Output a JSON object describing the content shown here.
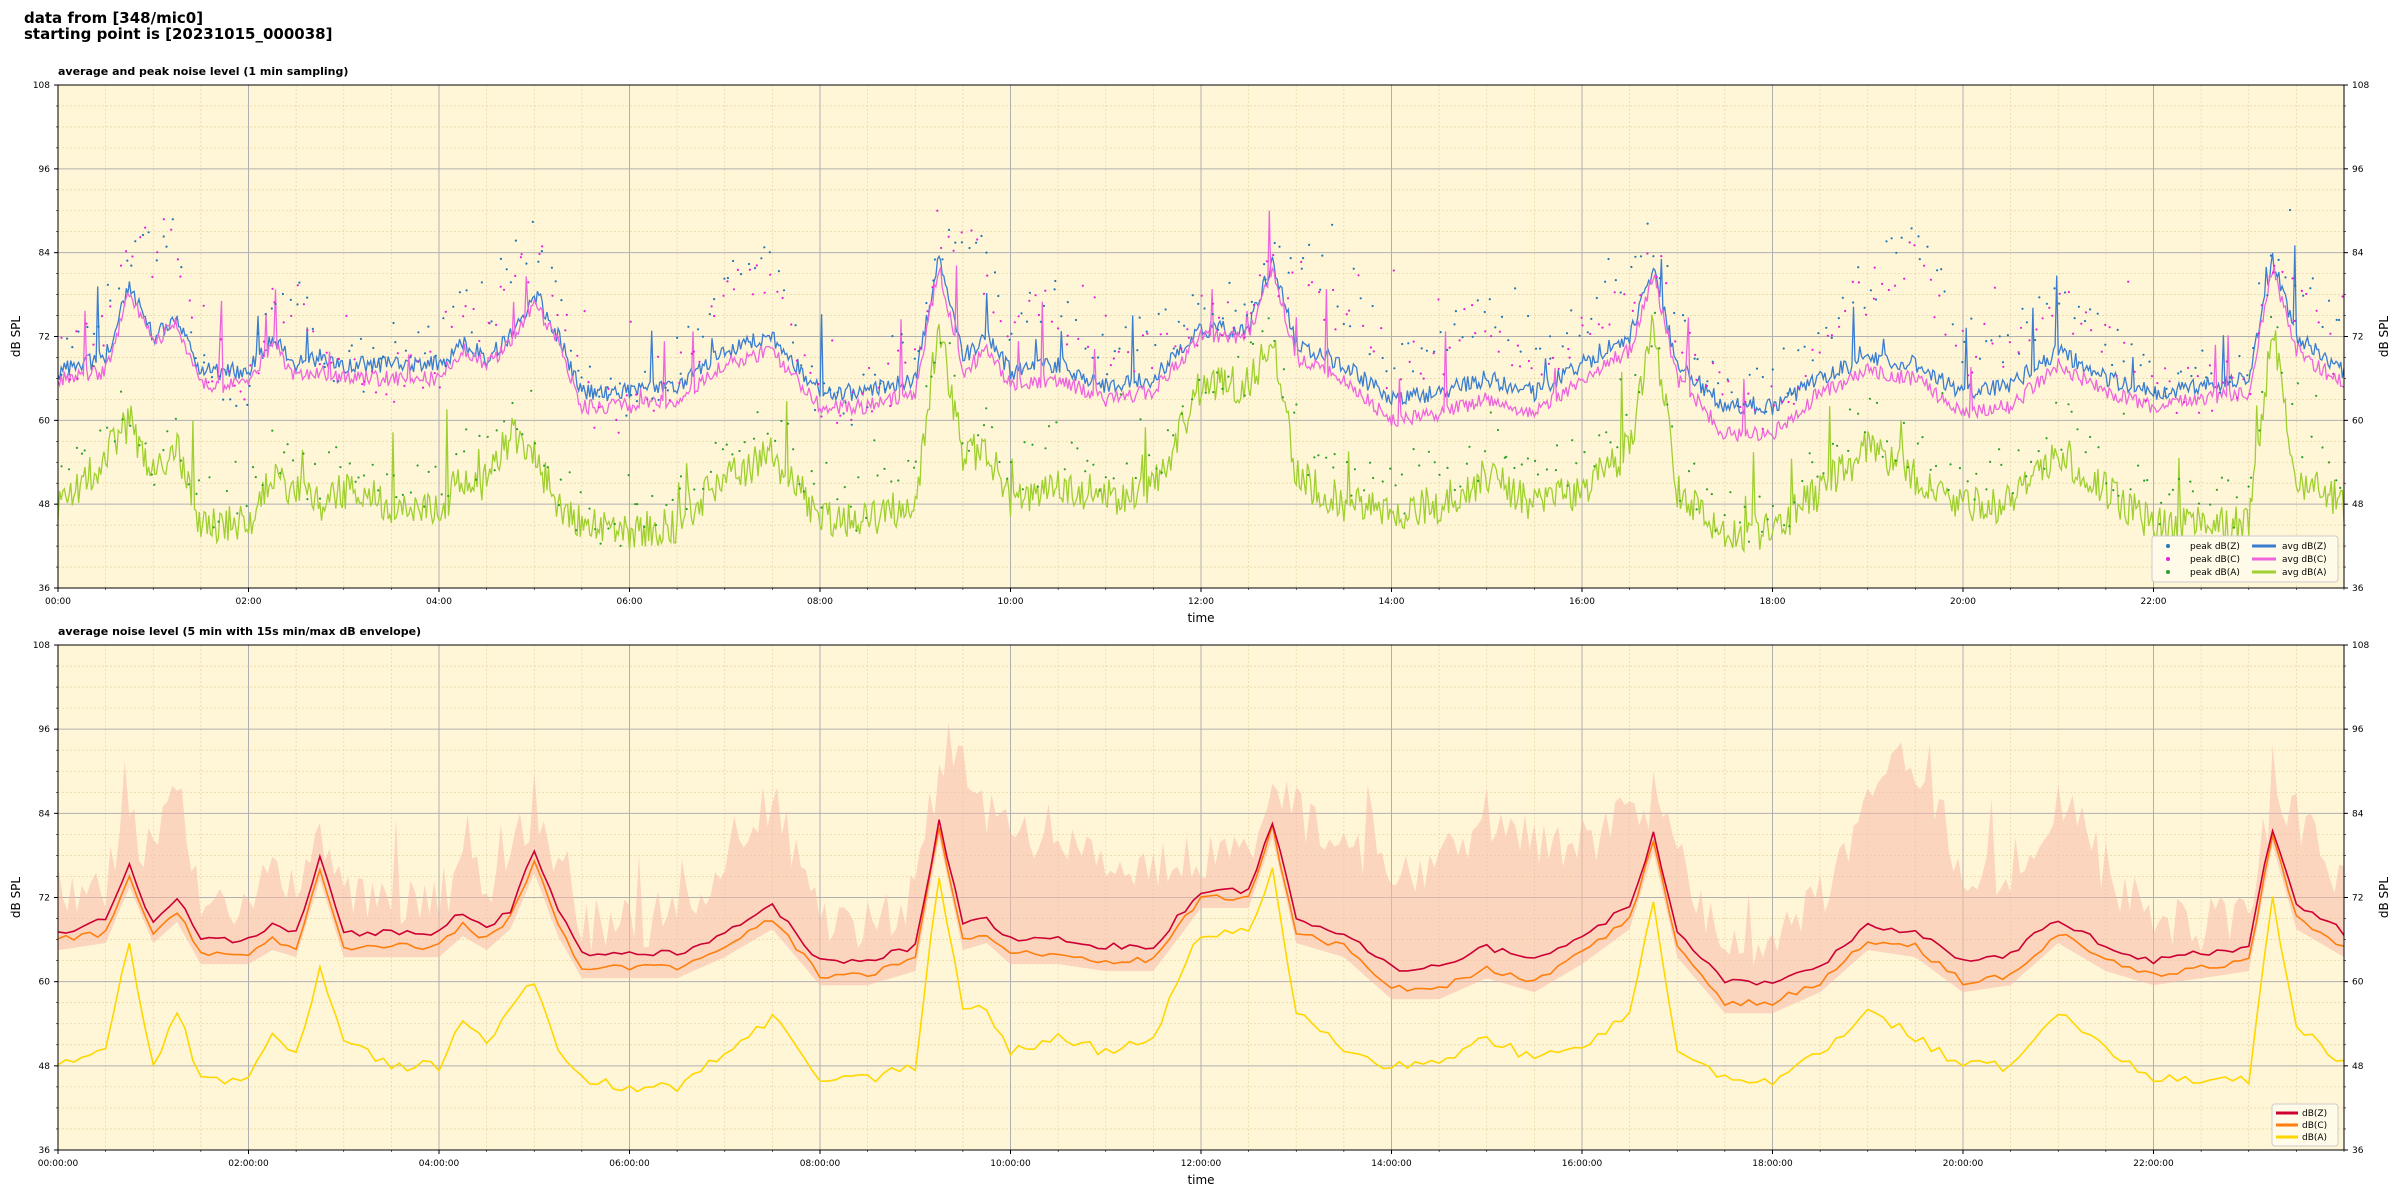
{
  "header": {
    "line1": "data from [348/mic0]",
    "line2": "starting point is [20231015_000038]"
  },
  "colors": {
    "plot_background": "#fff6d8",
    "peak_z": "#1f77b4",
    "peak_c": "#e81fd8",
    "peak_a": "#2ca02c",
    "avg_z": "#3b7dd0",
    "avg_c": "#ee66dd",
    "avg_a": "#a0d030",
    "line_z": "#cc0033",
    "line_c": "#ff7f0e",
    "line_a": "#ffd700",
    "envelope": "#f7b9a8"
  },
  "chart_data": [
    {
      "type": "line",
      "title": "average and peak noise level (1 min sampling)",
      "xlabel": "time",
      "ylabel": "dB SPL",
      "ylim": [
        36,
        108
      ],
      "xlim_hours": [
        0,
        24
      ],
      "yticks": [
        36,
        48,
        60,
        72,
        84,
        96,
        108
      ],
      "xticks": [
        "00:00",
        "02:00",
        "04:00",
        "06:00",
        "08:00",
        "10:00",
        "12:00",
        "14:00",
        "16:00",
        "18:00",
        "20:00",
        "22:00"
      ],
      "grid": true,
      "legend_position": "bottom-right",
      "legend": [
        "peak dB(Z)",
        "peak dB(C)",
        "peak dB(A)",
        "avg dB(Z)",
        "avg dB(C)",
        "avg dB(A)"
      ],
      "x_hours": [
        0.0,
        0.5,
        0.75,
        1.0,
        1.25,
        1.5,
        2.0,
        2.25,
        2.5,
        2.75,
        3.0,
        3.5,
        4.0,
        4.25,
        4.5,
        4.75,
        5.0,
        5.25,
        5.5,
        6.0,
        6.5,
        7.0,
        7.5,
        8.0,
        8.5,
        9.0,
        9.25,
        9.5,
        9.75,
        10.0,
        10.5,
        11.0,
        11.5,
        12.0,
        12.5,
        12.75,
        13.0,
        13.5,
        14.0,
        14.5,
        15.0,
        15.5,
        16.0,
        16.5,
        16.75,
        17.0,
        17.5,
        18.0,
        18.5,
        19.0,
        19.5,
        20.0,
        20.5,
        21.0,
        21.5,
        22.0,
        22.5,
        23.0,
        23.25,
        23.5,
        24.0
      ],
      "series": [
        {
          "name": "avg dB(Z)",
          "values": [
            67,
            69,
            79,
            72,
            75,
            67,
            67,
            72,
            68,
            69,
            68,
            68,
            68,
            71,
            69,
            72,
            78,
            72,
            64,
            64,
            65,
            70,
            72,
            64,
            64,
            66,
            83,
            69,
            72,
            67,
            68,
            65,
            66,
            73,
            73,
            83,
            71,
            68,
            63,
            64,
            66,
            64,
            68,
            72,
            82,
            68,
            62,
            62,
            66,
            69,
            68,
            64,
            65,
            70,
            66,
            64,
            65,
            66,
            83,
            72,
            67
          ]
        },
        {
          "name": "avg dB(C)",
          "values": [
            66,
            67,
            78,
            71,
            74,
            65,
            65,
            71,
            66,
            67,
            66,
            66,
            66,
            70,
            68,
            71,
            77,
            71,
            62,
            62,
            63,
            68,
            70,
            62,
            62,
            64,
            82,
            67,
            70,
            65,
            66,
            63,
            64,
            72,
            72,
            82,
            69,
            66,
            60,
            61,
            63,
            61,
            66,
            70,
            81,
            66,
            58,
            58,
            64,
            67,
            66,
            61,
            62,
            68,
            64,
            62,
            63,
            64,
            82,
            70,
            65
          ]
        },
        {
          "name": "avg dB(A)",
          "values": [
            47,
            55,
            60,
            52,
            56,
            45,
            45,
            52,
            50,
            48,
            50,
            48,
            47,
            52,
            51,
            58,
            55,
            48,
            45,
            44,
            45,
            52,
            55,
            46,
            46,
            48,
            74,
            55,
            56,
            48,
            51,
            49,
            50,
            65,
            65,
            72,
            52,
            48,
            47,
            48,
            52,
            48,
            50,
            56,
            74,
            50,
            44,
            44,
            50,
            56,
            52,
            48,
            48,
            55,
            50,
            45,
            45,
            45,
            73,
            52,
            48
          ]
        },
        {
          "name": "peak dB(Z)",
          "values": [
            72,
            80,
            88,
            90,
            92,
            70,
            70,
            82,
            84,
            75,
            72,
            72,
            74,
            80,
            80,
            86,
            91,
            84,
            68,
            68,
            72,
            82,
            88,
            66,
            68,
            76,
            88,
            92,
            86,
            78,
            82,
            74,
            76,
            80,
            82,
            86,
            88,
            80,
            74,
            76,
            80,
            76,
            78,
            84,
            90,
            78,
            68,
            68,
            76,
            84,
            90,
            76,
            76,
            82,
            76,
            70,
            70,
            72,
            86,
            84,
            74
          ]
        },
        {
          "name": "peak dB(C)",
          "values": [
            70,
            78,
            86,
            88,
            90,
            68,
            68,
            80,
            82,
            73,
            70,
            70,
            72,
            78,
            78,
            84,
            89,
            82,
            66,
            66,
            70,
            80,
            86,
            64,
            66,
            74,
            86,
            90,
            84,
            76,
            80,
            72,
            74,
            78,
            80,
            84,
            86,
            78,
            72,
            74,
            78,
            74,
            76,
            82,
            88,
            76,
            66,
            66,
            74,
            82,
            88,
            74,
            74,
            80,
            74,
            68,
            68,
            70,
            84,
            82,
            72
          ]
        },
        {
          "name": "peak dB(A)",
          "values": [
            56,
            62,
            66,
            58,
            62,
            52,
            52,
            60,
            58,
            55,
            58,
            55,
            54,
            60,
            58,
            66,
            64,
            56,
            50,
            50,
            52,
            62,
            64,
            52,
            52,
            56,
            80,
            64,
            62,
            56,
            60,
            56,
            58,
            70,
            70,
            78,
            60,
            56,
            54,
            56,
            60,
            56,
            58,
            64,
            78,
            56,
            50,
            50,
            58,
            64,
            60,
            56,
            56,
            62,
            58,
            52,
            52,
            52,
            78,
            60,
            56
          ]
        }
      ]
    },
    {
      "type": "line",
      "title": "average noise level (5 min with 15s min/max dB envelope)",
      "xlabel": "time",
      "ylabel": "dB SPL",
      "ylim": [
        36,
        108
      ],
      "xlim_hours": [
        0,
        24
      ],
      "yticks": [
        36,
        48,
        60,
        72,
        84,
        96,
        108
      ],
      "xticks": [
        "00:00:00",
        "02:00:00",
        "04:00:00",
        "06:00:00",
        "08:00:00",
        "10:00:00",
        "12:00:00",
        "14:00:00",
        "16:00:00",
        "18:00:00",
        "20:00:00",
        "22:00:00"
      ],
      "grid": true,
      "legend_position": "bottom-right",
      "legend": [
        "dB(Z)",
        "dB(C)",
        "dB(A)"
      ],
      "x_hours": [
        0.0,
        0.5,
        0.75,
        1.0,
        1.25,
        1.5,
        2.0,
        2.25,
        2.5,
        2.75,
        3.0,
        3.5,
        4.0,
        4.25,
        4.5,
        4.75,
        5.0,
        5.25,
        5.5,
        6.0,
        6.5,
        7.0,
        7.5,
        8.0,
        8.5,
        9.0,
        9.25,
        9.5,
        9.75,
        10.0,
        10.5,
        11.0,
        11.5,
        12.0,
        12.5,
        12.75,
        13.0,
        13.5,
        14.0,
        14.5,
        15.0,
        15.5,
        16.0,
        16.5,
        16.75,
        17.0,
        17.5,
        18.0,
        18.5,
        19.0,
        19.5,
        20.0,
        20.5,
        21.0,
        21.5,
        22.0,
        22.5,
        23.0,
        23.25,
        23.5,
        24.0
      ],
      "series": [
        {
          "name": "dB(Z)",
          "values": [
            67,
            69,
            77,
            68,
            72,
            66,
            66,
            68,
            67,
            78,
            67,
            67,
            67,
            70,
            68,
            70,
            79,
            70,
            64,
            64,
            64,
            67,
            71,
            63,
            63,
            65,
            83,
            68,
            69,
            66,
            66,
            65,
            65,
            73,
            73,
            83,
            69,
            67,
            62,
            62,
            65,
            63,
            66,
            71,
            81,
            67,
            60,
            60,
            62,
            68,
            67,
            63,
            64,
            69,
            65,
            63,
            64,
            65,
            82,
            71,
            67
          ]
        },
        {
          "name": "dB(C)",
          "values": [
            66,
            67,
            75,
            67,
            70,
            64,
            64,
            66,
            65,
            76,
            65,
            65,
            65,
            68,
            66,
            69,
            77,
            68,
            62,
            62,
            62,
            65,
            69,
            61,
            61,
            63,
            82,
            66,
            67,
            64,
            64,
            63,
            63,
            72,
            72,
            82,
            67,
            65,
            59,
            59,
            62,
            60,
            64,
            69,
            80,
            65,
            57,
            57,
            60,
            66,
            65,
            60,
            61,
            67,
            63,
            61,
            62,
            63,
            81,
            69,
            65
          ]
        },
        {
          "name": "dB(A)",
          "values": [
            48,
            51,
            65,
            48,
            56,
            46,
            46,
            52,
            50,
            62,
            52,
            48,
            48,
            54,
            51,
            56,
            60,
            50,
            46,
            45,
            45,
            50,
            55,
            46,
            46,
            48,
            75,
            56,
            56,
            50,
            52,
            50,
            52,
            67,
            67,
            76,
            56,
            50,
            48,
            48,
            52,
            49,
            50,
            56,
            72,
            50,
            46,
            46,
            50,
            56,
            52,
            48,
            48,
            56,
            50,
            46,
            46,
            46,
            72,
            54,
            48
          ]
        },
        {
          "name": "envelope max",
          "values": [
            70,
            74,
            82,
            78,
            90,
            70,
            72,
            74,
            72,
            82,
            72,
            72,
            72,
            76,
            74,
            78,
            84,
            76,
            68,
            68,
            70,
            78,
            86,
            68,
            68,
            72,
            88,
            92,
            84,
            80,
            80,
            76,
            76,
            78,
            78,
            88,
            84,
            80,
            76,
            76,
            84,
            80,
            80,
            84,
            86,
            78,
            66,
            66,
            72,
            86,
            92,
            76,
            76,
            86,
            76,
            68,
            68,
            70,
            86,
            84,
            74
          ]
        }
      ]
    }
  ]
}
